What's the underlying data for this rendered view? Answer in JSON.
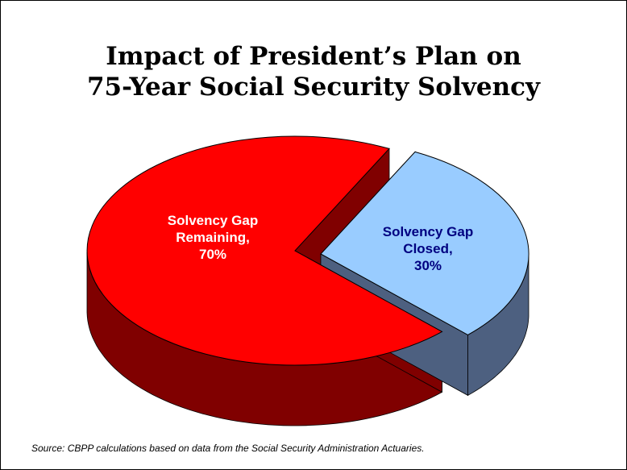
{
  "title_line1": "Impact of President’s Plan on",
  "title_line2": "75-Year Social Security Solvency",
  "source": "Source: CBPP calculations based on data from the Social Security Administration Actuaries.",
  "colors": {
    "remaining_top": "#ff0000",
    "remaining_side": "#800000",
    "closed_top": "#99ccff",
    "closed_side": "#4d6080",
    "label_remaining": "#ffffff",
    "label_closed": "#000080"
  },
  "chart_data": {
    "type": "pie",
    "title": "Impact of President’s Plan on 75-Year Social Security Solvency",
    "slices": [
      {
        "label_lines": [
          "Solvency Gap",
          "Remaining,",
          "70%"
        ],
        "value": 70
      },
      {
        "label_lines": [
          "Solvency Gap",
          "Closed,",
          "30%"
        ],
        "value": 30
      }
    ],
    "exploded": "Closed"
  }
}
